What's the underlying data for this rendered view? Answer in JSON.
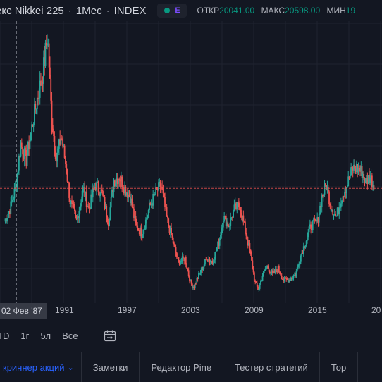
{
  "header": {
    "title": "екс Nikkei 225",
    "sep": "·",
    "interval": "1Мес",
    "exchange": "INDEX",
    "badge_letter": "E",
    "open_label": "ОТКР",
    "open_value": "20041.00",
    "high_label": "МАКС",
    "high_value": "20598.00",
    "low_label": "МИН",
    "low_value_fragment": "19"
  },
  "crosshair": {
    "date_label": "02 Фев '87"
  },
  "time_axis": {
    "ticks": [
      "1991",
      "1997",
      "2003",
      "2009",
      "2015",
      "20"
    ]
  },
  "range_buttons": [
    "TD",
    "1г",
    "5л",
    "Все"
  ],
  "bottom_tabs": {
    "screener": "криннер акций",
    "notes": "Заметки",
    "pine_editor": "Редактор Pine",
    "strategy_tester": "Тестер стратегий",
    "trading": "Тор"
  },
  "colors": {
    "up": "#26a69a",
    "down": "#ef5350",
    "accent": "#2962ff",
    "background": "#131722"
  },
  "chart_data": {
    "type": "line",
    "title": "",
    "xlabel": "",
    "ylabel": "",
    "x": [
      1986.0,
      1986.5,
      1987.0,
      1987.5,
      1988.0,
      1988.5,
      1989.0,
      1989.5,
      1989.95,
      1990.3,
      1990.75,
      1991.2,
      1991.6,
      1992.0,
      1992.6,
      1993.2,
      1993.7,
      1994.3,
      1994.9,
      1995.5,
      1996.0,
      1996.5,
      1997.0,
      1997.5,
      1998.0,
      1998.6,
      1999.2,
      1999.8,
      2000.3,
      2000.9,
      2001.4,
      2001.9,
      2002.5,
      2003.0,
      2003.3,
      2003.9,
      2004.5,
      2005.0,
      2005.6,
      2006.0,
      2006.5,
      2007.0,
      2007.5,
      2007.9,
      2008.4,
      2008.9,
      2009.2,
      2009.6,
      2010.0,
      2010.5,
      2011.0,
      2011.5,
      2012.0,
      2012.6,
      2013.0,
      2013.5,
      2014.0,
      2014.6,
      2015.0,
      2015.4,
      2015.8,
      2016.3,
      2016.8,
      2017.3,
      2017.8,
      2018.2,
      2018.7,
      2019.0,
      2019.4,
      2019.8
    ],
    "values": [
      16000,
      17500,
      20000,
      25500,
      23500,
      27500,
      31000,
      34000,
      38900,
      29000,
      23500,
      26500,
      23000,
      18500,
      16000,
      20000,
      17500,
      20500,
      19500,
      16000,
      21000,
      21500,
      20000,
      19000,
      15500,
      14500,
      17500,
      19500,
      20500,
      16000,
      13500,
      11000,
      11500,
      8500,
      8000,
      9800,
      11500,
      11000,
      13500,
      16500,
      15500,
      17500,
      18000,
      15500,
      12500,
      8500,
      7600,
      9500,
      10500,
      9500,
      10200,
      8800,
      8900,
      9500,
      11500,
      13500,
      15500,
      16000,
      19000,
      20500,
      18000,
      16500,
      19000,
      20500,
      22500,
      22500,
      22000,
      20800,
      21500,
      20100
    ],
    "ylim": [
      6000,
      40000
    ],
    "xlim": [
      1985.6,
      2019.85
    ],
    "crosshair_y": 20041
  }
}
